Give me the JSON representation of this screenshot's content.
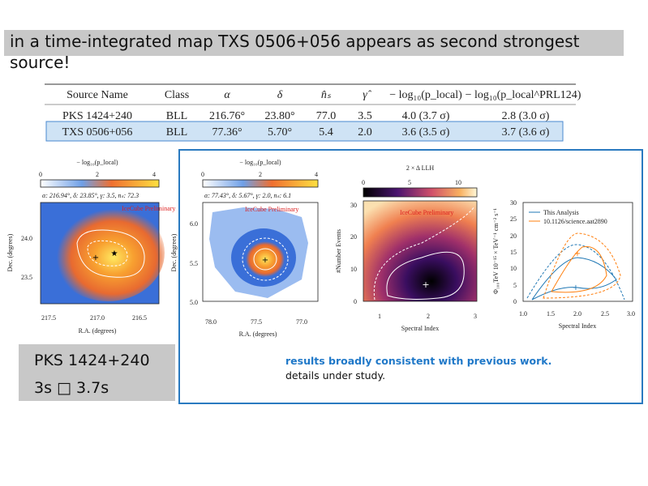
{
  "header": {
    "lines": [
      "in a time-integrated map TXS 0506+056 appears as second strongest",
      "source!"
    ]
  },
  "table": {
    "columns": [
      "Source Name",
      "Class",
      "α",
      "δ",
      "n̂ₛ",
      "γ̂",
      "− log₁₀(p_local)",
      "− log₁₀(p_local^PRL124)"
    ],
    "rows": [
      [
        "PKS 1424+240",
        "BLL",
        "216.76°",
        "23.80°",
        "77.0",
        "3.5",
        "4.0 (3.7 σ)",
        "2.8 (3.0 σ)"
      ],
      [
        "TXS 0506+056",
        "BLL",
        "77.36°",
        "5.70°",
        "5.4",
        "2.0",
        "3.6 (3.5 σ)",
        "3.7 (3.6 σ)"
      ]
    ]
  },
  "plots": [
    {
      "colorbar_label": "− log₁₀(p_local)",
      "colorbar_ticks": [
        "0",
        "2",
        "4"
      ],
      "info": "α: 216.94°, δ: 23.85°, γ: 3.5, nₛ: 72.3",
      "watermark": "IceCube Preliminary",
      "yticks": [
        "24.0",
        "23.5"
      ],
      "xticks": [
        "217.5",
        "217.0",
        "216.5"
      ],
      "xlabel": "R.A. (degrees)",
      "ylabel": "Dec. (degrees)"
    },
    {
      "colorbar_label": "− log₁₀(p_local)",
      "colorbar_ticks": [
        "0",
        "2",
        "4"
      ],
      "info": "α: 77.43°, δ: 5.67°, γ: 2.0, nₛ: 6.1",
      "watermark": "IceCube Preliminary",
      "yticks": [
        "6.0",
        "5.5",
        "5.0"
      ],
      "xticks": [
        "78.0",
        "77.5",
        "77.0"
      ],
      "xlabel": "R.A. (degrees)",
      "ylabel": "Dec. (degrees)"
    },
    {
      "colorbar_label": "2 × Δ LLH",
      "colorbar_ticks": [
        "0",
        "5",
        "10"
      ],
      "watermark": "IceCube Preliminary",
      "yticks": [
        "30",
        "20",
        "10",
        "0"
      ],
      "xticks": [
        "1",
        "2",
        "3"
      ],
      "xlabel": "Spectral Index",
      "ylabel": "#Number Events"
    },
    {
      "yticks": [
        "30",
        "25",
        "20",
        "15",
        "10",
        "5",
        "0"
      ],
      "xticks": [
        "1.0",
        "1.5",
        "2.0",
        "2.5",
        "3.0"
      ],
      "xlabel": "Spectral Index",
      "ylabel": "Φ₁₀₀TeV 10⁻¹⁵ × TeV⁻¹ cm⁻² s⁻¹",
      "legend": [
        "This Analysis",
        "10.1126/science.aat2890"
      ]
    }
  ],
  "note": {
    "lines": [
      "PKS 1424+240",
      "3s □ 3.7s"
    ]
  },
  "caption": {
    "lines": [
      "results broadly consistent with previous work.",
      "details under study."
    ]
  }
}
